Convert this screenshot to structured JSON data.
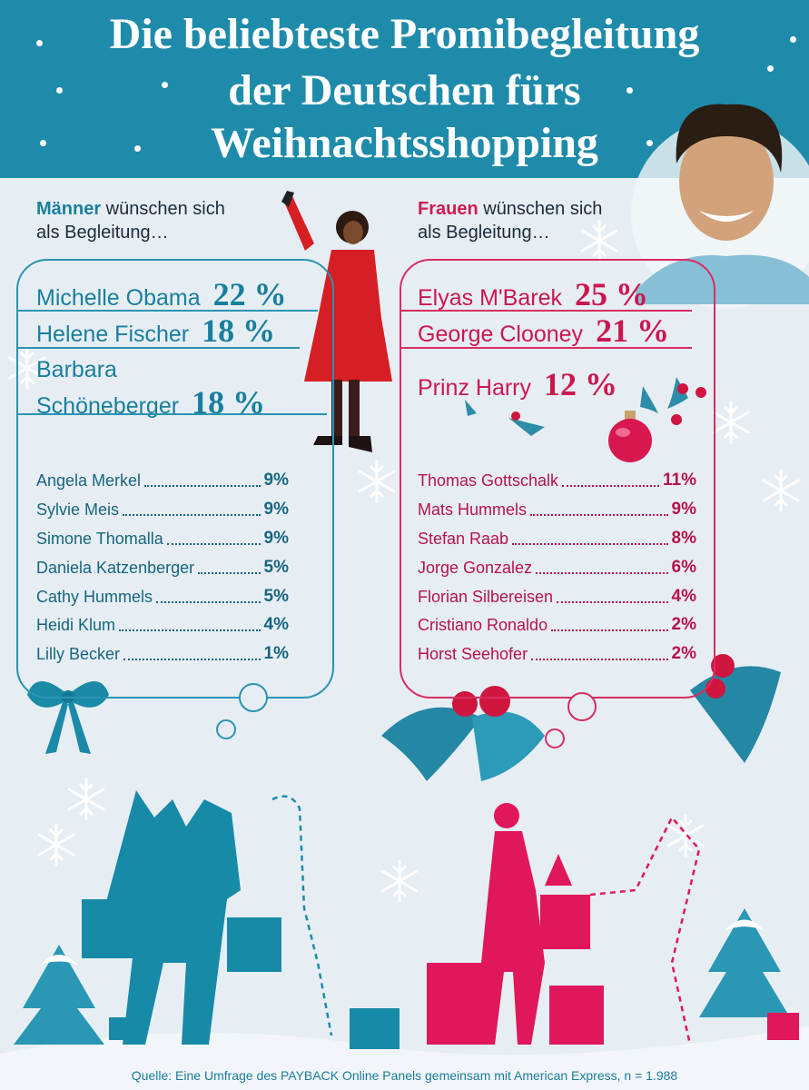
{
  "title": {
    "lines": [
      "Die beliebteste Promibegleitung",
      "der Deutschen fürs",
      "Weihnachtsshopping"
    ]
  },
  "men": {
    "intro_bold": "Männer",
    "intro_rest": " wünschen sich",
    "intro_line2": "als Begleitung…",
    "top": [
      {
        "name_lines": [
          "Michelle Obama"
        ],
        "value": "22 %"
      },
      {
        "name_lines": [
          "Helene Fischer"
        ],
        "value": "18 %"
      },
      {
        "name_lines": [
          "Barbara",
          "Schöneberger"
        ],
        "value": "18 %"
      }
    ],
    "list": [
      {
        "name": "Angela Merkel",
        "value": "9%"
      },
      {
        "name": "Sylvie Meis",
        "value": "9%"
      },
      {
        "name": "Simone Thomalla",
        "value": "9%"
      },
      {
        "name": "Daniela Katzenberger",
        "value": "5%"
      },
      {
        "name": "Cathy Hummels",
        "value": "5%"
      },
      {
        "name": "Heidi Klum",
        "value": "4%"
      },
      {
        "name": "Lilly Becker",
        "value": "1%"
      }
    ]
  },
  "women": {
    "intro_bold": "Frauen",
    "intro_rest": " wünschen sich",
    "intro_line2": "als Begleitung…",
    "top": [
      {
        "name_lines": [
          "Elyas M'Barek"
        ],
        "value": "25 %"
      },
      {
        "name_lines": [
          "George Clooney"
        ],
        "value": "21 %"
      },
      {
        "name_lines": [
          "Prinz Harry"
        ],
        "value": "12 %"
      }
    ],
    "list": [
      {
        "name": "Thomas Gottschalk",
        "value": "11%"
      },
      {
        "name": "Mats Hummels",
        "value": "9%"
      },
      {
        "name": "Stefan Raab",
        "value": "8%"
      },
      {
        "name": "Jorge Gonzalez",
        "value": "6%"
      },
      {
        "name": "Florian Silbereisen",
        "value": "4%"
      },
      {
        "name": "Cristiano Ronaldo",
        "value": "2%"
      },
      {
        "name": "Horst Seehofer",
        "value": "2%"
      }
    ]
  },
  "source": "Quelle: Eine Umfrage des PAYBACK Online Panels gemeinsam mit American Express, n = 1.988",
  "colors": {
    "header": "#1f8bab",
    "men_accent": "#187f9d",
    "women_accent": "#cc1650",
    "background": "#e6eef4"
  },
  "chart_data": [
    {
      "type": "table",
      "categories": [
        "Michelle Obama",
        "Helene Fischer",
        "Barbara Schöneberger",
        "Angela Merkel",
        "Sylvie Meis",
        "Simone Thomalla",
        "Daniela Katzenberger",
        "Cathy Hummels",
        "Heidi Klum",
        "Lilly Becker"
      ],
      "values": [
        22,
        18,
        18,
        9,
        9,
        9,
        5,
        5,
        4,
        1
      ],
      "unit": "%"
    },
    {
      "type": "table",
      "categories": [
        "Elyas M'Barek",
        "George Clooney",
        "Prinz Harry",
        "Thomas Gottschalk",
        "Mats Hummels",
        "Stefan Raab",
        "Jorge Gonzalez",
        "Florian Silbereisen",
        "Cristiano Ronaldo",
        "Horst Seehofer"
      ],
      "values": [
        25,
        21,
        12,
        11,
        9,
        8,
        6,
        4,
        2,
        2
      ],
      "unit": "%"
    }
  ],
  "icons": [
    "snowflake-icon",
    "bow-icon",
    "holly-icon",
    "christmas-ornament-icon",
    "shopper-silhouette-icon",
    "christmas-tree-icon",
    "gift-icon"
  ]
}
